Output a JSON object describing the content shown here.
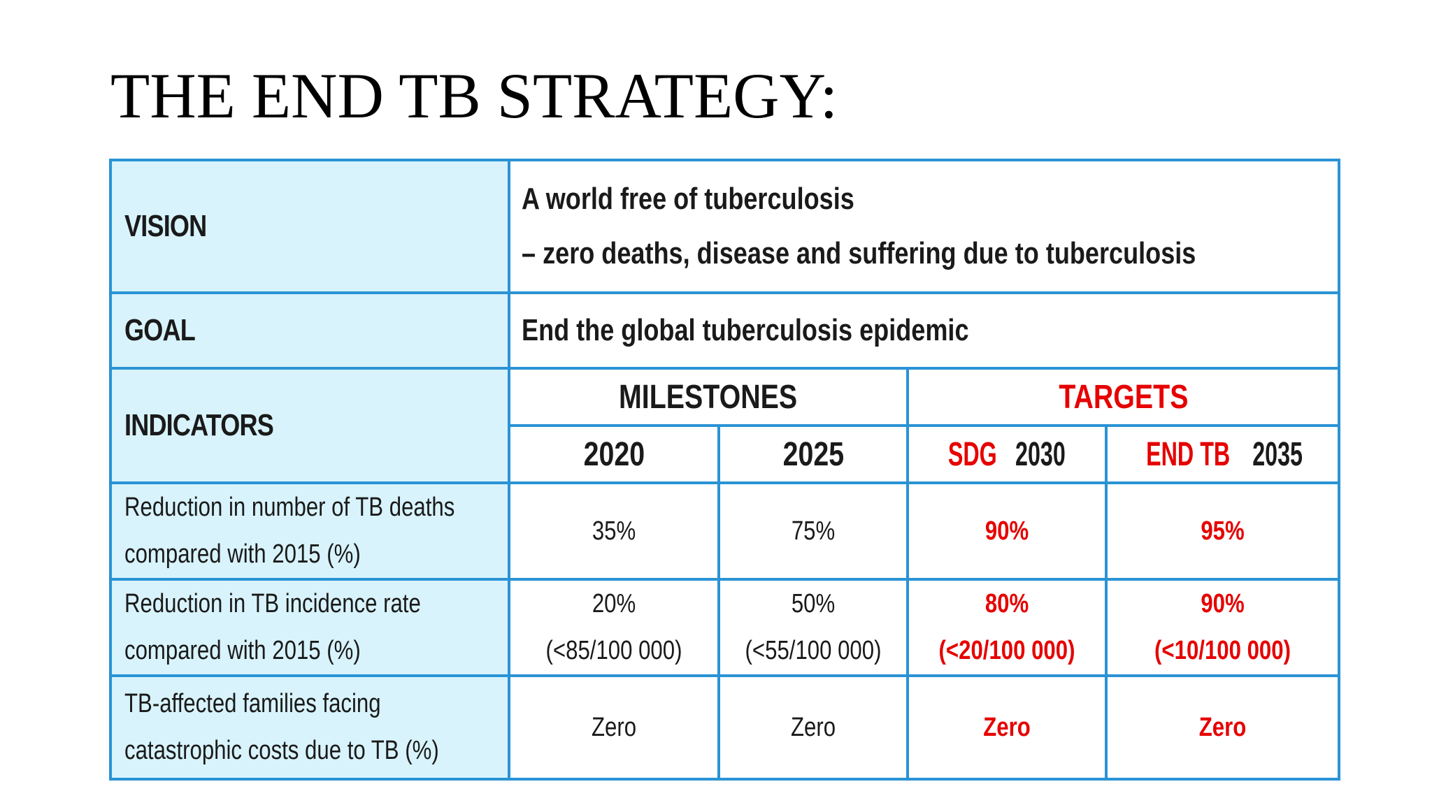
{
  "title": "THE END TB STRATEGY:",
  "colors": {
    "border": "#2a93d5",
    "label_background": "#d8f3fb",
    "target_red": "#e60000"
  },
  "vision": {
    "label": "VISION",
    "line1": "A world free of tuberculosis",
    "line2": "– zero deaths, disease and suffering due to tuberculosis"
  },
  "goal": {
    "label": "GOAL",
    "text": "End the global tuberculosis epidemic"
  },
  "indicators": {
    "label": "INDICATORS",
    "milestones_label": "MILESTONES",
    "targets_label": "TARGETS",
    "years": {
      "y2020": "2020",
      "y2025": "2025",
      "sdg_prefix": "SDG",
      "sdg_year": "2030",
      "endtb_prefix": "END TB",
      "endtb_year": "2035"
    }
  },
  "rows": [
    {
      "indicator_line1": "Reduction in number of TB deaths",
      "indicator_line2": "compared with 2015 (%)",
      "v2020": "35%",
      "v2025": "75%",
      "v2030": "90%",
      "v2035": "95%"
    },
    {
      "indicator_line1": "Reduction in TB incidence rate",
      "indicator_line2": "compared with 2015 (%)",
      "v2020": "20%",
      "v2020_sub": "(<85/100 000)",
      "v2025": "50%",
      "v2025_sub": "(<55/100 000)",
      "v2030": "80%",
      "v2030_sub": "(<20/100 000)",
      "v2035": "90%",
      "v2035_sub": "(<10/100 000)"
    },
    {
      "indicator_line1": "TB-affected families facing",
      "indicator_line2": "catastrophic costs due to TB (%)",
      "v2020": "Zero",
      "v2025": "Zero",
      "v2030": "Zero",
      "v2035": "Zero"
    }
  ]
}
